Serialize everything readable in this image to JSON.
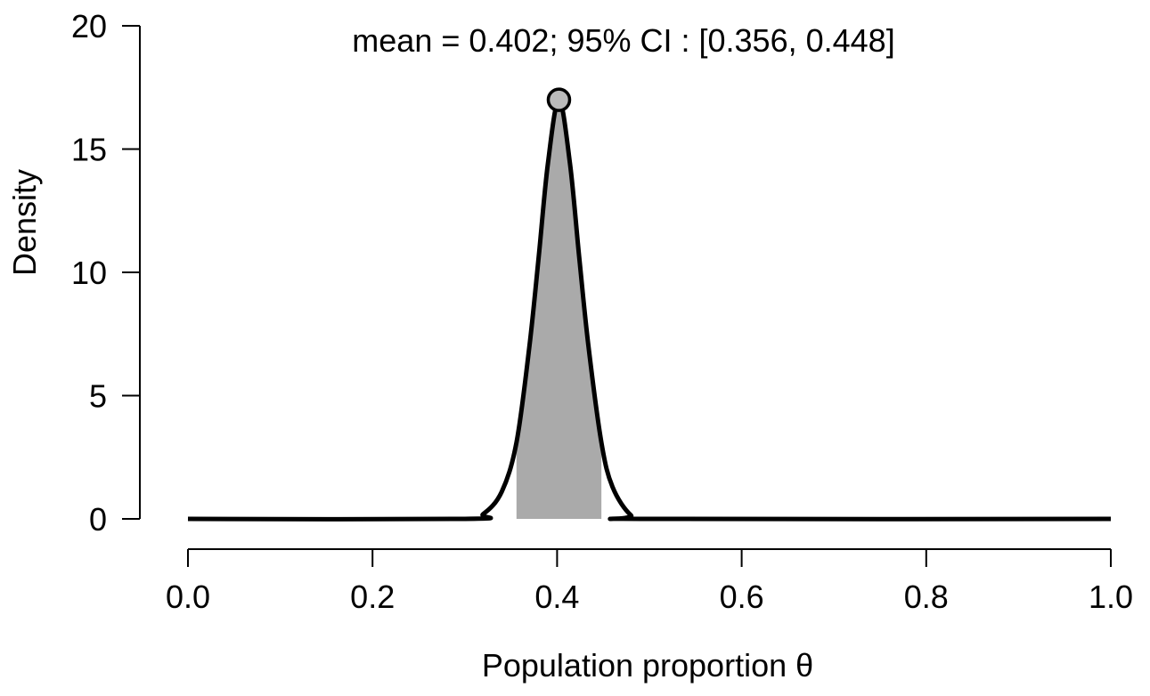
{
  "chart_data": {
    "type": "area",
    "summary_label": "mean =  0.402;  95% CI :  [0.356, 0.448]",
    "xlabel": "Population proportion θ",
    "ylabel": "Density",
    "xlim": [
      0.0,
      1.0
    ],
    "ylim": [
      0,
      20
    ],
    "x_ticks": [
      "0.0",
      "0.2",
      "0.4",
      "0.6",
      "0.8",
      "1.0"
    ],
    "y_ticks": [
      "0",
      "5",
      "10",
      "15",
      "20"
    ],
    "grid": false,
    "legend": "none",
    "mean": 0.402,
    "ci": [
      0.356,
      0.448
    ],
    "peak": {
      "x": 0.402,
      "y": 17.0
    },
    "series": [
      {
        "x": [
          0.0,
          0.3,
          0.32,
          0.34,
          0.356,
          0.37,
          0.38,
          0.39,
          0.402,
          0.414,
          0.424,
          0.434,
          0.448,
          0.46,
          0.48,
          0.5,
          1.0
        ],
        "values": [
          0.0,
          0.0,
          0.2,
          1.1,
          3.1,
          7.0,
          10.6,
          14.4,
          17.0,
          14.4,
          10.6,
          7.0,
          3.1,
          1.3,
          0.15,
          0.0,
          0.0
        ]
      }
    ],
    "colors": {
      "line": "#000000",
      "ci_fill": "#aaaaaa",
      "peak_marker": "#bbbbbb"
    }
  }
}
